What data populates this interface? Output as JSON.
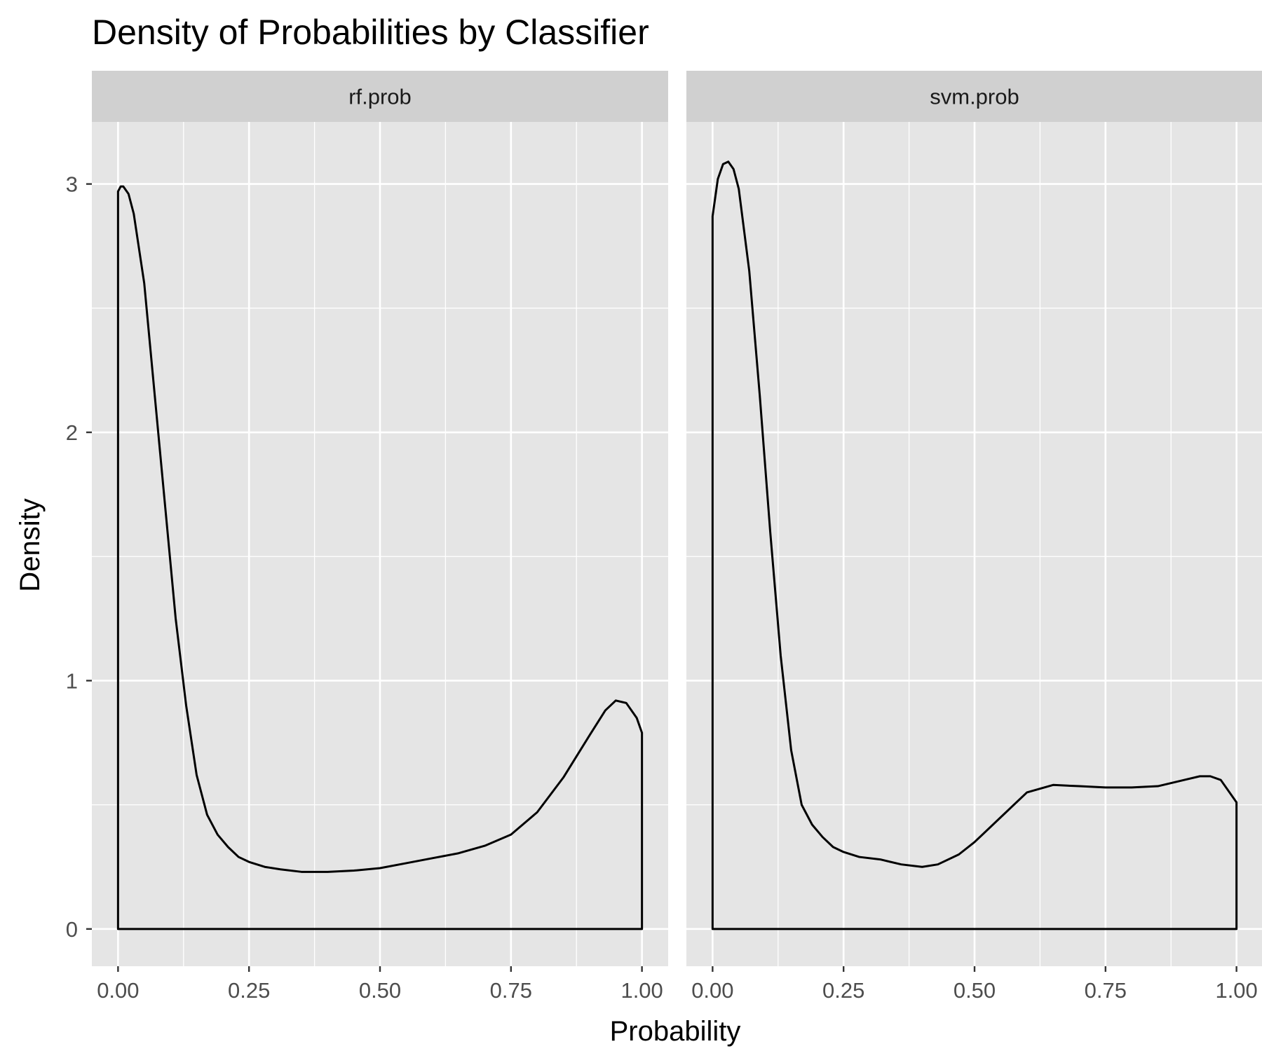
{
  "chart_data": {
    "type": "area",
    "title": "Density of Probabilities by Classifier",
    "xlabel": "Probability",
    "ylabel": "Density",
    "xlim": [
      -0.05,
      1.05
    ],
    "ylim": [
      -0.15,
      3.25
    ],
    "x_ticks": [
      "0.00",
      "0.25",
      "0.50",
      "0.75",
      "1.00"
    ],
    "y_ticks": [
      "0",
      "1",
      "2",
      "3"
    ],
    "grid": true,
    "background": "#e5e5e5",
    "strip_color": "#d0d0d0",
    "line_color": "#000000",
    "panels": [
      {
        "name": "rf.prob",
        "x": [
          0.0,
          0.005,
          0.01,
          0.02,
          0.03,
          0.05,
          0.07,
          0.09,
          0.11,
          0.13,
          0.15,
          0.17,
          0.19,
          0.21,
          0.23,
          0.25,
          0.28,
          0.31,
          0.35,
          0.4,
          0.45,
          0.5,
          0.55,
          0.6,
          0.65,
          0.7,
          0.75,
          0.8,
          0.85,
          0.9,
          0.93,
          0.95,
          0.97,
          0.99,
          1.0
        ],
        "y": [
          2.97,
          2.99,
          2.99,
          2.96,
          2.88,
          2.6,
          2.15,
          1.7,
          1.25,
          0.9,
          0.62,
          0.46,
          0.38,
          0.33,
          0.29,
          0.27,
          0.25,
          0.24,
          0.23,
          0.23,
          0.235,
          0.245,
          0.265,
          0.285,
          0.305,
          0.335,
          0.38,
          0.47,
          0.61,
          0.78,
          0.88,
          0.92,
          0.91,
          0.85,
          0.79
        ]
      },
      {
        "name": "svm.prob",
        "x": [
          0.0,
          0.01,
          0.02,
          0.03,
          0.04,
          0.05,
          0.07,
          0.09,
          0.11,
          0.13,
          0.15,
          0.17,
          0.19,
          0.21,
          0.23,
          0.25,
          0.28,
          0.32,
          0.36,
          0.4,
          0.43,
          0.47,
          0.5,
          0.55,
          0.6,
          0.65,
          0.7,
          0.75,
          0.8,
          0.85,
          0.9,
          0.93,
          0.95,
          0.97,
          1.0
        ],
        "y": [
          2.87,
          3.02,
          3.08,
          3.09,
          3.06,
          2.98,
          2.65,
          2.15,
          1.6,
          1.1,
          0.72,
          0.5,
          0.42,
          0.37,
          0.33,
          0.31,
          0.29,
          0.28,
          0.26,
          0.25,
          0.26,
          0.3,
          0.35,
          0.45,
          0.55,
          0.58,
          0.575,
          0.57,
          0.57,
          0.575,
          0.6,
          0.615,
          0.615,
          0.6,
          0.51
        ]
      }
    ]
  }
}
